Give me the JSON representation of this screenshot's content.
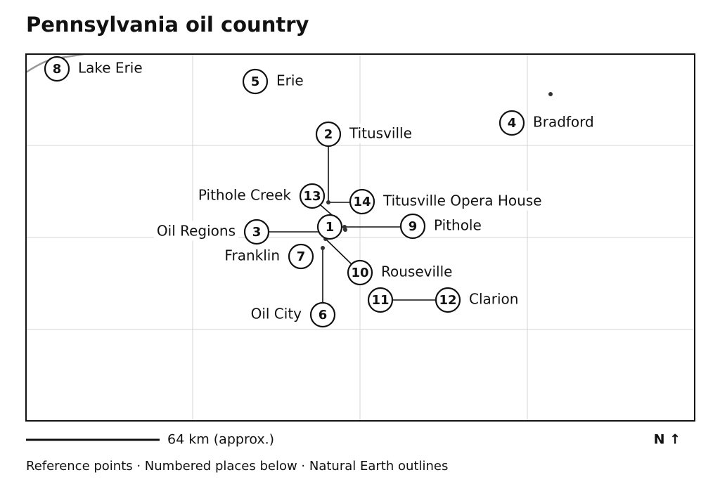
{
  "title": "Pennsylvania oil country",
  "places": [
    {
      "number": 1
    },
    {
      "number": 2,
      "label": "Titusville"
    },
    {
      "number": 3,
      "label": "Oil Regions"
    },
    {
      "number": 4,
      "label": "Bradford"
    },
    {
      "number": 5,
      "label": "Erie"
    },
    {
      "number": 6,
      "label": "Oil City"
    },
    {
      "number": 7,
      "label": "Franklin"
    },
    {
      "number": 8,
      "label": "Lake Erie"
    },
    {
      "number": 9,
      "label": "Pithole"
    },
    {
      "number": 10,
      "label": "Rouseville"
    },
    {
      "number": 11
    },
    {
      "number": 12,
      "label": "Clarion"
    },
    {
      "number": 13,
      "label": "Pithole Creek"
    },
    {
      "number": 14,
      "label": "Titusville Opera House"
    }
  ],
  "scale_label": "64 km (approx.)",
  "north_label": "N ↑",
  "footer": "Reference points · Numbered places below · Natural Earth outlines"
}
